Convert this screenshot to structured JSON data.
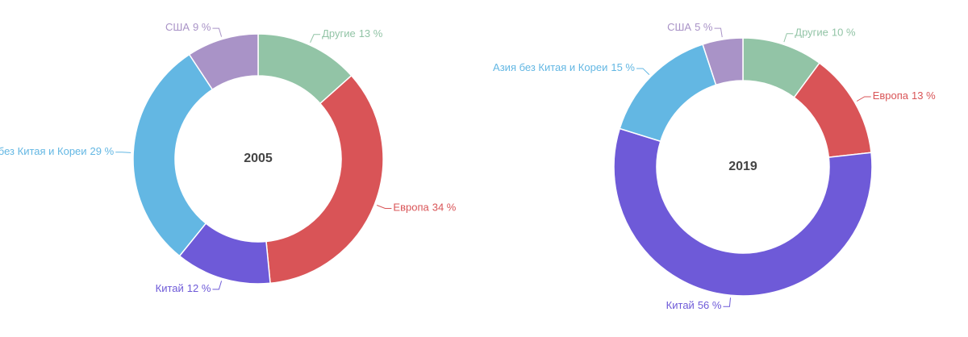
{
  "chart_data": [
    {
      "type": "donut",
      "title": "2005",
      "categories": [
        "Другие",
        "Европа",
        "Китай",
        "Азия без Китая и Кореи",
        "США"
      ],
      "values": [
        13,
        34,
        12,
        29,
        9
      ],
      "value_labels": [
        "13 %",
        "34 %",
        "12 %",
        "29 %",
        "9 %"
      ],
      "colors": [
        "#92c4a6",
        "#d95457",
        "#6e5ad8",
        "#63b7e3",
        "#a993c7"
      ]
    },
    {
      "type": "donut",
      "title": "2019",
      "categories": [
        "Другие",
        "Европа",
        "Китай",
        "Азия без Китая и Кореи",
        "США"
      ],
      "values": [
        10,
        13,
        56,
        15,
        5
      ],
      "value_labels": [
        "10 %",
        "13 %",
        "56 %",
        "15 %",
        "5 %"
      ],
      "colors": [
        "#92c4a6",
        "#d95457",
        "#6e5ad8",
        "#63b7e3",
        "#a993c7"
      ]
    }
  ]
}
